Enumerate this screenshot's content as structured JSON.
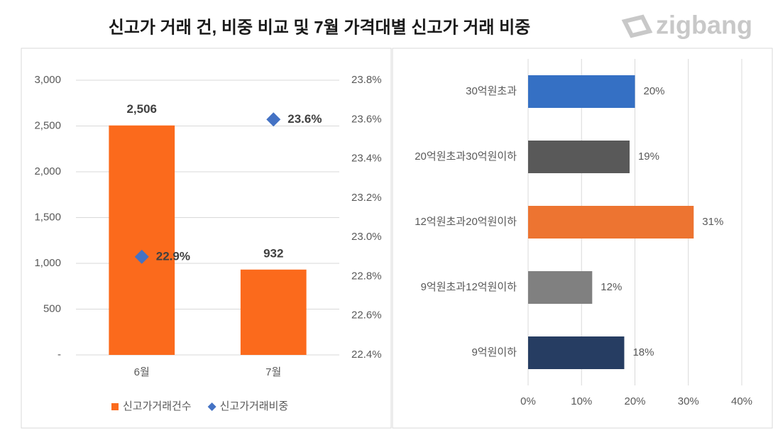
{
  "title": "신고가 거래 건, 비중 비교 및 7월 가격대별 신고가 거래 비중",
  "logo": "zigbang",
  "chart_data": [
    {
      "type": "combo",
      "categories": [
        "6월",
        "7월"
      ],
      "series": [
        {
          "name": "신고가거래건수",
          "type": "bar",
          "color": "#fb6a1c",
          "values": [
            2506,
            932
          ],
          "value_labels": [
            "2,506",
            "932"
          ]
        },
        {
          "name": "신고가거래비중",
          "type": "scatter",
          "marker": "diamond",
          "axis": "y2",
          "color": "#4472c4",
          "values": [
            22.9,
            23.6
          ],
          "value_labels": [
            "22.9%",
            "23.6%"
          ]
        }
      ],
      "ylim": [
        0,
        3000
      ],
      "yticks": [
        {
          "value": 0,
          "label": "-"
        },
        500,
        {
          "value": 1000,
          "label": "1,000"
        },
        {
          "value": 1500,
          "label": "1,500"
        },
        {
          "value": 2000,
          "label": "2,000"
        },
        {
          "value": 2500,
          "label": "2,500"
        },
        {
          "value": 3000,
          "label": "3,000"
        }
      ],
      "y2lim": [
        22.4,
        23.8
      ],
      "y2ticks": [
        {
          "value": 22.4,
          "label": "22.4%"
        },
        {
          "value": 22.6,
          "label": "22.6%"
        },
        {
          "value": 22.8,
          "label": "22.8%"
        },
        {
          "value": 23.0,
          "label": "23.0%"
        },
        {
          "value": 23.2,
          "label": "23.2%"
        },
        {
          "value": 23.4,
          "label": "23.4%"
        },
        {
          "value": 23.6,
          "label": "23.6%"
        },
        {
          "value": 23.8,
          "label": "23.8%"
        }
      ],
      "grid": true,
      "legend": "bottom"
    },
    {
      "type": "barh",
      "categories": [
        "30억원초과",
        "20억원초과30억원이하",
        "12억원초과20억원이하",
        "9억원초과12억원이하",
        "9억원이하"
      ],
      "values": [
        20,
        19,
        31,
        12,
        18
      ],
      "value_labels": [
        "20%",
        "19%",
        "31%",
        "12%",
        "18%"
      ],
      "colors": [
        "#3570c4",
        "#595959",
        "#ed7431",
        "#808080",
        "#263d62"
      ],
      "xlim": [
        0,
        40
      ],
      "xticks": [
        {
          "value": 0,
          "label": "0%"
        },
        {
          "value": 10,
          "label": "10%"
        },
        {
          "value": 20,
          "label": "20%"
        },
        {
          "value": 30,
          "label": "30%"
        },
        {
          "value": 40,
          "label": "40%"
        }
      ],
      "grid": true
    }
  ]
}
